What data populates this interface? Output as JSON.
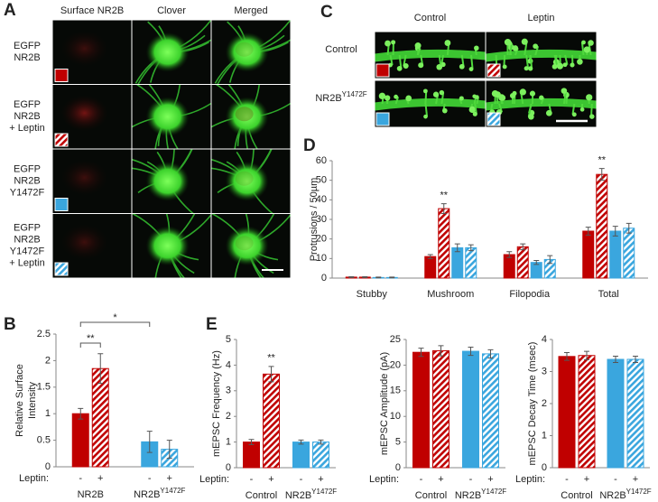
{
  "figure": {
    "A": {
      "letter": "A",
      "columns": [
        "Surface NR2B",
        "Clover",
        "Merged"
      ],
      "rows": [
        [
          "EGFP",
          "NR2B"
        ],
        [
          "EGFP",
          "NR2B",
          "+ Leptin"
        ],
        [
          "EGFP",
          "NR2B",
          "Y1472F"
        ],
        [
          "EGFP",
          "NR2B",
          "Y1472F",
          "+ Leptin"
        ]
      ]
    },
    "C": {
      "letter": "C",
      "columns": [
        "Control",
        "Leptin"
      ],
      "rows": [
        {
          "label": "Control"
        },
        {
          "label": "NR2B",
          "sup": "Y1472F"
        }
      ]
    }
  },
  "chart_data": [
    {
      "type": "bar",
      "panel": "B",
      "ylabel": [
        "Relative Surface",
        "Intensity"
      ],
      "category_title": "Leptin:",
      "categories": [
        "-",
        "+",
        "-",
        "+"
      ],
      "groups": [
        {
          "label": "NR2B"
        },
        {
          "label": "NR2B",
          "sup": "Y1472F"
        }
      ],
      "values": [
        1.0,
        1.85,
        0.47,
        0.33
      ],
      "errors": [
        0.1,
        0.28,
        0.2,
        0.17
      ],
      "colors": [
        "#c00000",
        "#c00000",
        "#3aa6de",
        "#3aa6de"
      ],
      "hatched": [
        false,
        true,
        false,
        true
      ],
      "ylim": [
        0,
        2.5
      ],
      "yticks": [
        0,
        0.5,
        1,
        1.5,
        2,
        2.5
      ],
      "annotations": [
        "**",
        "*"
      ]
    },
    {
      "type": "grouped_bar",
      "panel": "D",
      "ylabel": "Protrusions / 50µm",
      "categories": [
        "Stubby",
        "Mushroom",
        "Filopodia",
        "Total"
      ],
      "series": [
        {
          "color": "#c00000",
          "hatched": false,
          "values": [
            0.5,
            11,
            12,
            24
          ],
          "errors": [
            0.2,
            1,
            1.5,
            2
          ]
        },
        {
          "color": "#c00000",
          "hatched": true,
          "values": [
            0.5,
            35.5,
            16,
            53
          ],
          "errors": [
            0.2,
            2.5,
            1.5,
            3
          ]
        },
        {
          "color": "#3aa6de",
          "hatched": false,
          "values": [
            0.3,
            15.5,
            8,
            24
          ],
          "errors": [
            0.2,
            2,
            1,
            2.5
          ]
        },
        {
          "color": "#3aa6de",
          "hatched": true,
          "values": [
            0.3,
            15.5,
            9.5,
            25.5
          ],
          "errors": [
            0.2,
            1.5,
            2,
            2.5
          ]
        }
      ],
      "ylim": [
        0,
        60
      ],
      "yticks": [
        0,
        10,
        20,
        30,
        40,
        50,
        60
      ],
      "annotations": [
        "**",
        "**"
      ]
    },
    {
      "type": "bar",
      "panel": "E",
      "ylabel": "mEPSC Frequency (Hz)",
      "category_title": "Leptin:",
      "categories": [
        "-",
        "+",
        "-",
        "+"
      ],
      "groups": [
        {
          "label": "Control"
        },
        {
          "label": "NR2B",
          "sup": "Y1472F"
        }
      ],
      "values": [
        1.0,
        3.65,
        1.0,
        1.0
      ],
      "errors": [
        0.1,
        0.3,
        0.08,
        0.08
      ],
      "colors": [
        "#c00000",
        "#c00000",
        "#3aa6de",
        "#3aa6de"
      ],
      "hatched": [
        false,
        true,
        false,
        true
      ],
      "ylim": [
        0,
        5
      ],
      "yticks": [
        0,
        1,
        2,
        3,
        4,
        5
      ],
      "annotations": [
        "**"
      ]
    },
    {
      "type": "bar",
      "ylabel": "mEPSC Amplitude (pA)",
      "category_title": "Leptin:",
      "categories": [
        "-",
        "+",
        "-",
        "+"
      ],
      "groups": [
        {
          "label": "Control"
        },
        {
          "label": "NR2B",
          "sup": "Y1472F"
        }
      ],
      "values": [
        22.5,
        22.8,
        22.7,
        22.2
      ],
      "errors": [
        0.8,
        1,
        0.8,
        0.8
      ],
      "colors": [
        "#c00000",
        "#c00000",
        "#3aa6de",
        "#3aa6de"
      ],
      "hatched": [
        false,
        true,
        false,
        true
      ],
      "ylim": [
        0,
        25
      ],
      "yticks": [
        0,
        5,
        10,
        15,
        20,
        25
      ]
    },
    {
      "type": "bar",
      "ylabel": "mEPSC Decay Time (msec)",
      "category_title": "Leptin:",
      "categories": [
        "-",
        "+",
        "-",
        "+"
      ],
      "groups": [
        {
          "label": "Control"
        },
        {
          "label": "NR2B",
          "sup": "Y1472F"
        }
      ],
      "values": [
        3.47,
        3.5,
        3.38,
        3.38
      ],
      "errors": [
        0.12,
        0.13,
        0.1,
        0.1
      ],
      "colors": [
        "#c00000",
        "#c00000",
        "#3aa6de",
        "#3aa6de"
      ],
      "hatched": [
        false,
        true,
        false,
        true
      ],
      "ylim": [
        0,
        4
      ],
      "yticks": [
        0,
        1,
        2,
        3,
        4
      ]
    }
  ]
}
